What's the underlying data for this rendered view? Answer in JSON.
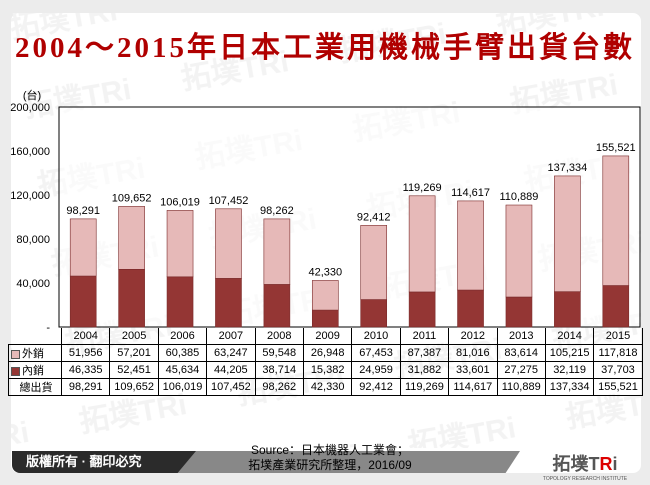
{
  "title": "2004～2015年日本工業用機械手臂出貨台數",
  "chart_data": {
    "type": "bar",
    "stacked": true,
    "title": "2004～2015年日本工業用機械手臂出貨台數",
    "ylabel": "(台)",
    "ylim": [
      0,
      200000
    ],
    "yticks": [
      "-",
      "40,000",
      "80,000",
      "120,000",
      "160,000",
      "200,000"
    ],
    "ytick_values": [
      0,
      40000,
      80000,
      120000,
      160000,
      200000
    ],
    "categories": [
      "2004",
      "2005",
      "2006",
      "2007",
      "2008",
      "2009",
      "2010",
      "2011",
      "2012",
      "2013",
      "2014",
      "2015"
    ],
    "series": [
      {
        "name": "內銷",
        "color": "#943634",
        "values": [
          46335,
          52451,
          45634,
          44205,
          38714,
          15382,
          24959,
          31882,
          33601,
          27275,
          32119,
          37703
        ],
        "labels": [
          "46,335",
          "52,451",
          "45,634",
          "44,205",
          "38,714",
          "15,382",
          "24,959",
          "31,882",
          "33,601",
          "27,275",
          "32,119",
          "37,703"
        ]
      },
      {
        "name": "外銷",
        "color": "#e6b9b8",
        "values": [
          51956,
          57201,
          60385,
          63247,
          59548,
          26948,
          67453,
          87387,
          81016,
          83614,
          105215,
          117818
        ],
        "labels": [
          "51,956",
          "57,201",
          "60,385",
          "63,247",
          "59,548",
          "26,948",
          "67,453",
          "87,387",
          "81,016",
          "83,614",
          "105,215",
          "117,818"
        ]
      }
    ],
    "totals": {
      "name": "總出貨",
      "values": [
        98291,
        109652,
        106019,
        107452,
        98262,
        42330,
        92412,
        119269,
        114617,
        110889,
        137334,
        155521
      ],
      "labels": [
        "98,291",
        "109,652",
        "106,019",
        "107,452",
        "98,262",
        "42,330",
        "92,412",
        "119,269",
        "114,617",
        "110,889",
        "137,334",
        "155,521"
      ]
    }
  },
  "footer": {
    "copyright": "版權所有 · 翻印必究",
    "source_line1": "Source：日本機器人工業會；",
    "source_line2": "拓墣產業研究所整理，2016/09",
    "logo_text": "拓墣TRi",
    "logo_sub": "TOPOLOGY RESEARCH INSTITUTE"
  }
}
